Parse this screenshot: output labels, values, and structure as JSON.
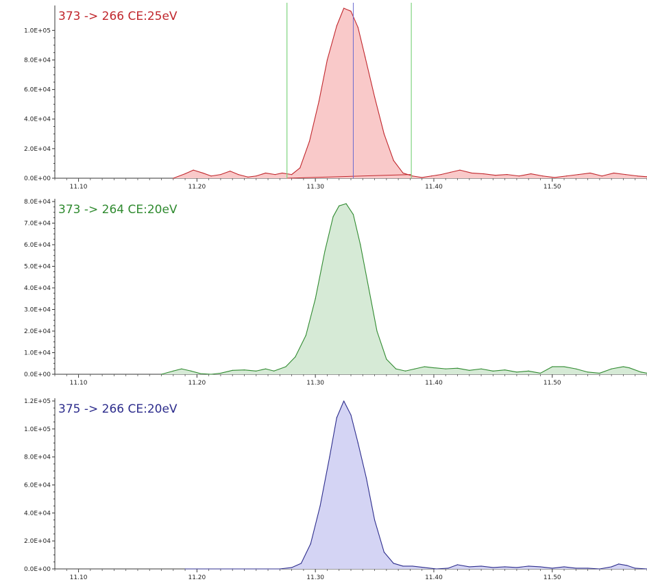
{
  "chart_data": [
    {
      "type": "area",
      "title": "373 -> 266 CE:25eV",
      "color": "#c0262c",
      "fill": "#f9c9c9",
      "xlim": [
        11.08,
        11.58
      ],
      "ylim": [
        0,
        115000
      ],
      "xticks": [
        11.1,
        11.2,
        11.3,
        11.4,
        11.5
      ],
      "xtick_labels": [
        "11.10",
        "11.20",
        "11.30",
        "11.40",
        "11.50"
      ],
      "yticks": [
        0,
        20000,
        40000,
        60000,
        80000,
        100000
      ],
      "ytick_labels": [
        "0.0E+00",
        "2.0E+04",
        "4.0E+04",
        "6.0E+04",
        "8.0E+04",
        "1.0E+05"
      ],
      "integration_bounds": [
        11.276,
        11.381
      ],
      "integration_color": "#7fd47f",
      "apex_marker": 11.332,
      "apex_color": "#6a6ad0",
      "x": [
        11.18,
        11.19,
        11.197,
        11.205,
        11.212,
        11.22,
        11.228,
        11.235,
        11.243,
        11.25,
        11.258,
        11.266,
        11.272,
        11.28,
        11.287,
        11.295,
        11.303,
        11.31,
        11.318,
        11.324,
        11.33,
        11.336,
        11.342,
        11.35,
        11.358,
        11.366,
        11.374,
        11.382,
        11.39,
        11.398,
        11.406,
        11.414,
        11.422,
        11.432,
        11.442,
        11.452,
        11.462,
        11.472,
        11.482,
        11.492,
        11.502,
        11.512,
        11.522,
        11.532,
        11.542,
        11.552,
        11.562,
        11.572,
        11.58
      ],
      "values": [
        0,
        3000,
        5500,
        3500,
        1500,
        2500,
        4800,
        2500,
        800,
        1500,
        3500,
        2500,
        3500,
        2500,
        7000,
        25000,
        52000,
        80000,
        103000,
        115000,
        113000,
        102000,
        82000,
        55000,
        30000,
        12000,
        3500,
        1500,
        500,
        1500,
        2500,
        4000,
        5500,
        3500,
        3000,
        2000,
        2500,
        1500,
        3000,
        1500,
        500,
        1500,
        2500,
        3500,
        1500,
        3500,
        2500,
        1500,
        1000
      ],
      "baseline": [
        [
          11.276,
          0
        ],
        [
          11.381,
          2500
        ]
      ]
    },
    {
      "type": "area",
      "title": "373 -> 264 CE:20eV",
      "color": "#2f8a2f",
      "fill": "#d6ead6",
      "xlim": [
        11.08,
        11.58
      ],
      "ylim": [
        0,
        80000
      ],
      "xticks": [
        11.1,
        11.2,
        11.3,
        11.4,
        11.5
      ],
      "xtick_labels": [
        "11.10",
        "11.20",
        "11.30",
        "11.40",
        "11.50"
      ],
      "yticks": [
        0,
        10000,
        20000,
        30000,
        40000,
        50000,
        60000,
        70000,
        80000
      ],
      "ytick_labels": [
        "0.0E+00",
        "1.0E+04",
        "2.0E+04",
        "3.0E+04",
        "4.0E+04",
        "5.0E+04",
        "6.0E+04",
        "7.0E+04",
        "8.0E+04"
      ],
      "x": [
        11.17,
        11.18,
        11.187,
        11.195,
        11.203,
        11.212,
        11.22,
        11.23,
        11.24,
        11.25,
        11.258,
        11.265,
        11.275,
        11.283,
        11.292,
        11.3,
        11.308,
        11.315,
        11.32,
        11.326,
        11.332,
        11.338,
        11.345,
        11.352,
        11.36,
        11.368,
        11.376,
        11.384,
        11.392,
        11.4,
        11.41,
        11.42,
        11.43,
        11.44,
        11.45,
        11.46,
        11.47,
        11.48,
        11.49,
        11.5,
        11.51,
        11.52,
        11.53,
        11.54,
        11.55,
        11.56,
        11.565,
        11.575,
        11.58
      ],
      "values": [
        0,
        1500,
        2500,
        1500,
        300,
        0,
        500,
        1800,
        2000,
        1500,
        2500,
        1500,
        3500,
        8000,
        18000,
        35000,
        57000,
        73000,
        78000,
        79000,
        74000,
        60000,
        40000,
        20000,
        7000,
        2500,
        1500,
        2500,
        3500,
        3000,
        2500,
        2800,
        1800,
        2500,
        1500,
        2000,
        1000,
        1500,
        500,
        3500,
        3500,
        2500,
        1000,
        500,
        2500,
        3500,
        3000,
        1000,
        500
      ]
    },
    {
      "type": "area",
      "title": "375 -> 266 CE:20eV",
      "color": "#2c2c8c",
      "fill": "#d4d4f4",
      "xlim": [
        11.08,
        11.58
      ],
      "ylim": [
        0,
        120000
      ],
      "xticks": [
        11.1,
        11.2,
        11.3,
        11.4,
        11.5
      ],
      "xtick_labels": [
        "11.10",
        "11.20",
        "11.30",
        "11.40",
        "11.50"
      ],
      "yticks": [
        0,
        20000,
        40000,
        60000,
        80000,
        100000,
        120000
      ],
      "ytick_labels": [
        "0.0E+00",
        "2.0E+04",
        "4.0E+04",
        "6.0E+04",
        "8.0E+04",
        "1.0E+05",
        "1.2E+05"
      ],
      "x": [
        11.19,
        11.21,
        11.23,
        11.25,
        11.27,
        11.28,
        11.288,
        11.296,
        11.304,
        11.312,
        11.318,
        11.324,
        11.33,
        11.336,
        11.343,
        11.35,
        11.358,
        11.366,
        11.374,
        11.382,
        11.392,
        11.402,
        11.412,
        11.42,
        11.43,
        11.44,
        11.45,
        11.46,
        11.47,
        11.48,
        11.49,
        11.5,
        11.51,
        11.52,
        11.53,
        11.54,
        11.55,
        11.556,
        11.563,
        11.57,
        11.58
      ],
      "values": [
        0,
        0,
        0,
        0,
        0,
        1000,
        4000,
        18000,
        45000,
        80000,
        108000,
        120000,
        110000,
        90000,
        65000,
        35000,
        12000,
        4000,
        2000,
        2000,
        1000,
        0,
        500,
        3000,
        1500,
        2000,
        1000,
        1500,
        1000,
        2000,
        1500,
        500,
        1500,
        500,
        500,
        0,
        1500,
        3500,
        2500,
        500,
        0
      ]
    }
  ]
}
